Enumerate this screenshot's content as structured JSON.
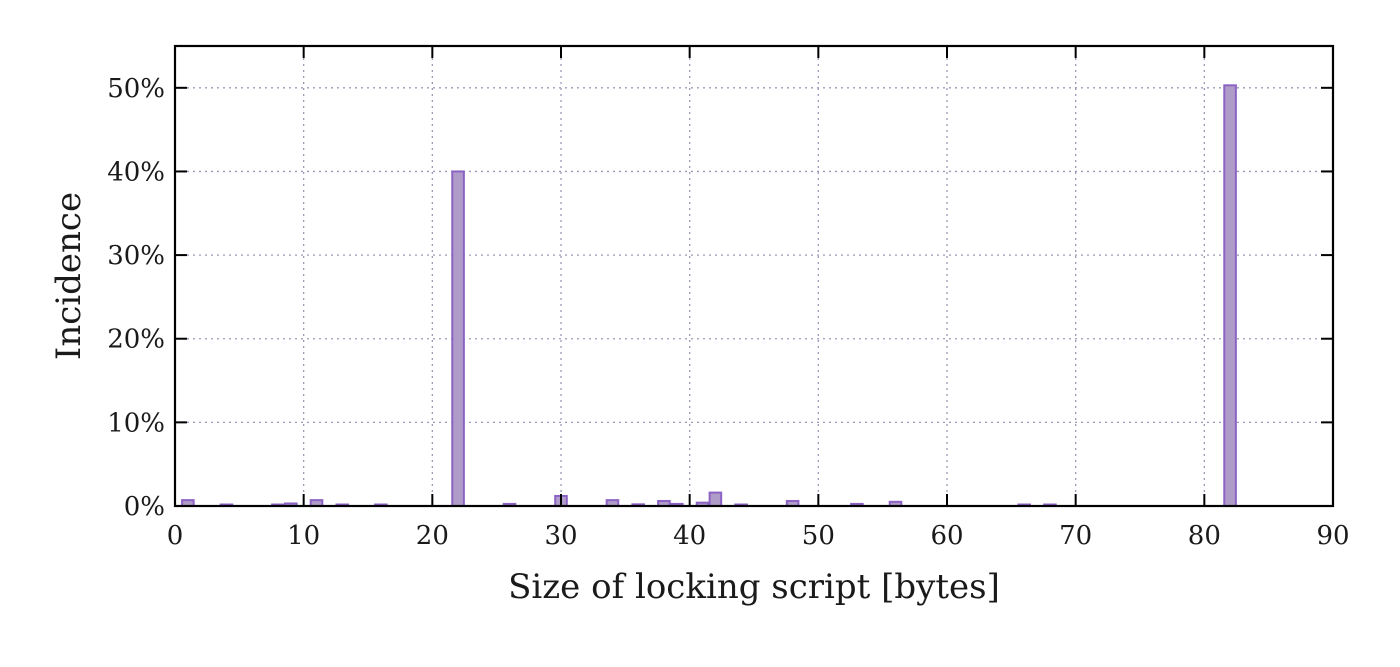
{
  "chart_data": {
    "type": "bar",
    "title": "",
    "xlabel": "Size of locking script [bytes]",
    "ylabel": "Incidence",
    "xlim": [
      0,
      90
    ],
    "ylim": [
      0,
      55
    ],
    "x_ticks": [
      0,
      10,
      20,
      30,
      40,
      50,
      60,
      70,
      80,
      90
    ],
    "x_tick_labels": [
      "0",
      "10",
      "20",
      "30",
      "40",
      "50",
      "60",
      "70",
      "80",
      "90"
    ],
    "y_ticks": [
      0,
      10,
      20,
      30,
      40,
      50
    ],
    "y_tick_labels": [
      "0%",
      "10%",
      "20%",
      "30%",
      "40%",
      "50%"
    ],
    "grid": true,
    "bar_color": "#b09cc9",
    "bar_edge_color": "#8c62c4",
    "grid_color": "#9a9ab8",
    "x": [
      1,
      4,
      8,
      9,
      11,
      13,
      16,
      22,
      26,
      30,
      34,
      36,
      38,
      39,
      41,
      42,
      44,
      48,
      53,
      56,
      66,
      68,
      82
    ],
    "values": [
      0.7,
      0.1,
      0.15,
      0.3,
      0.7,
      0.1,
      0.05,
      40.0,
      0.25,
      1.2,
      0.7,
      0.2,
      0.6,
      0.25,
      0.4,
      1.6,
      0.1,
      0.6,
      0.25,
      0.5,
      0.1,
      0.05,
      50.3
    ]
  }
}
